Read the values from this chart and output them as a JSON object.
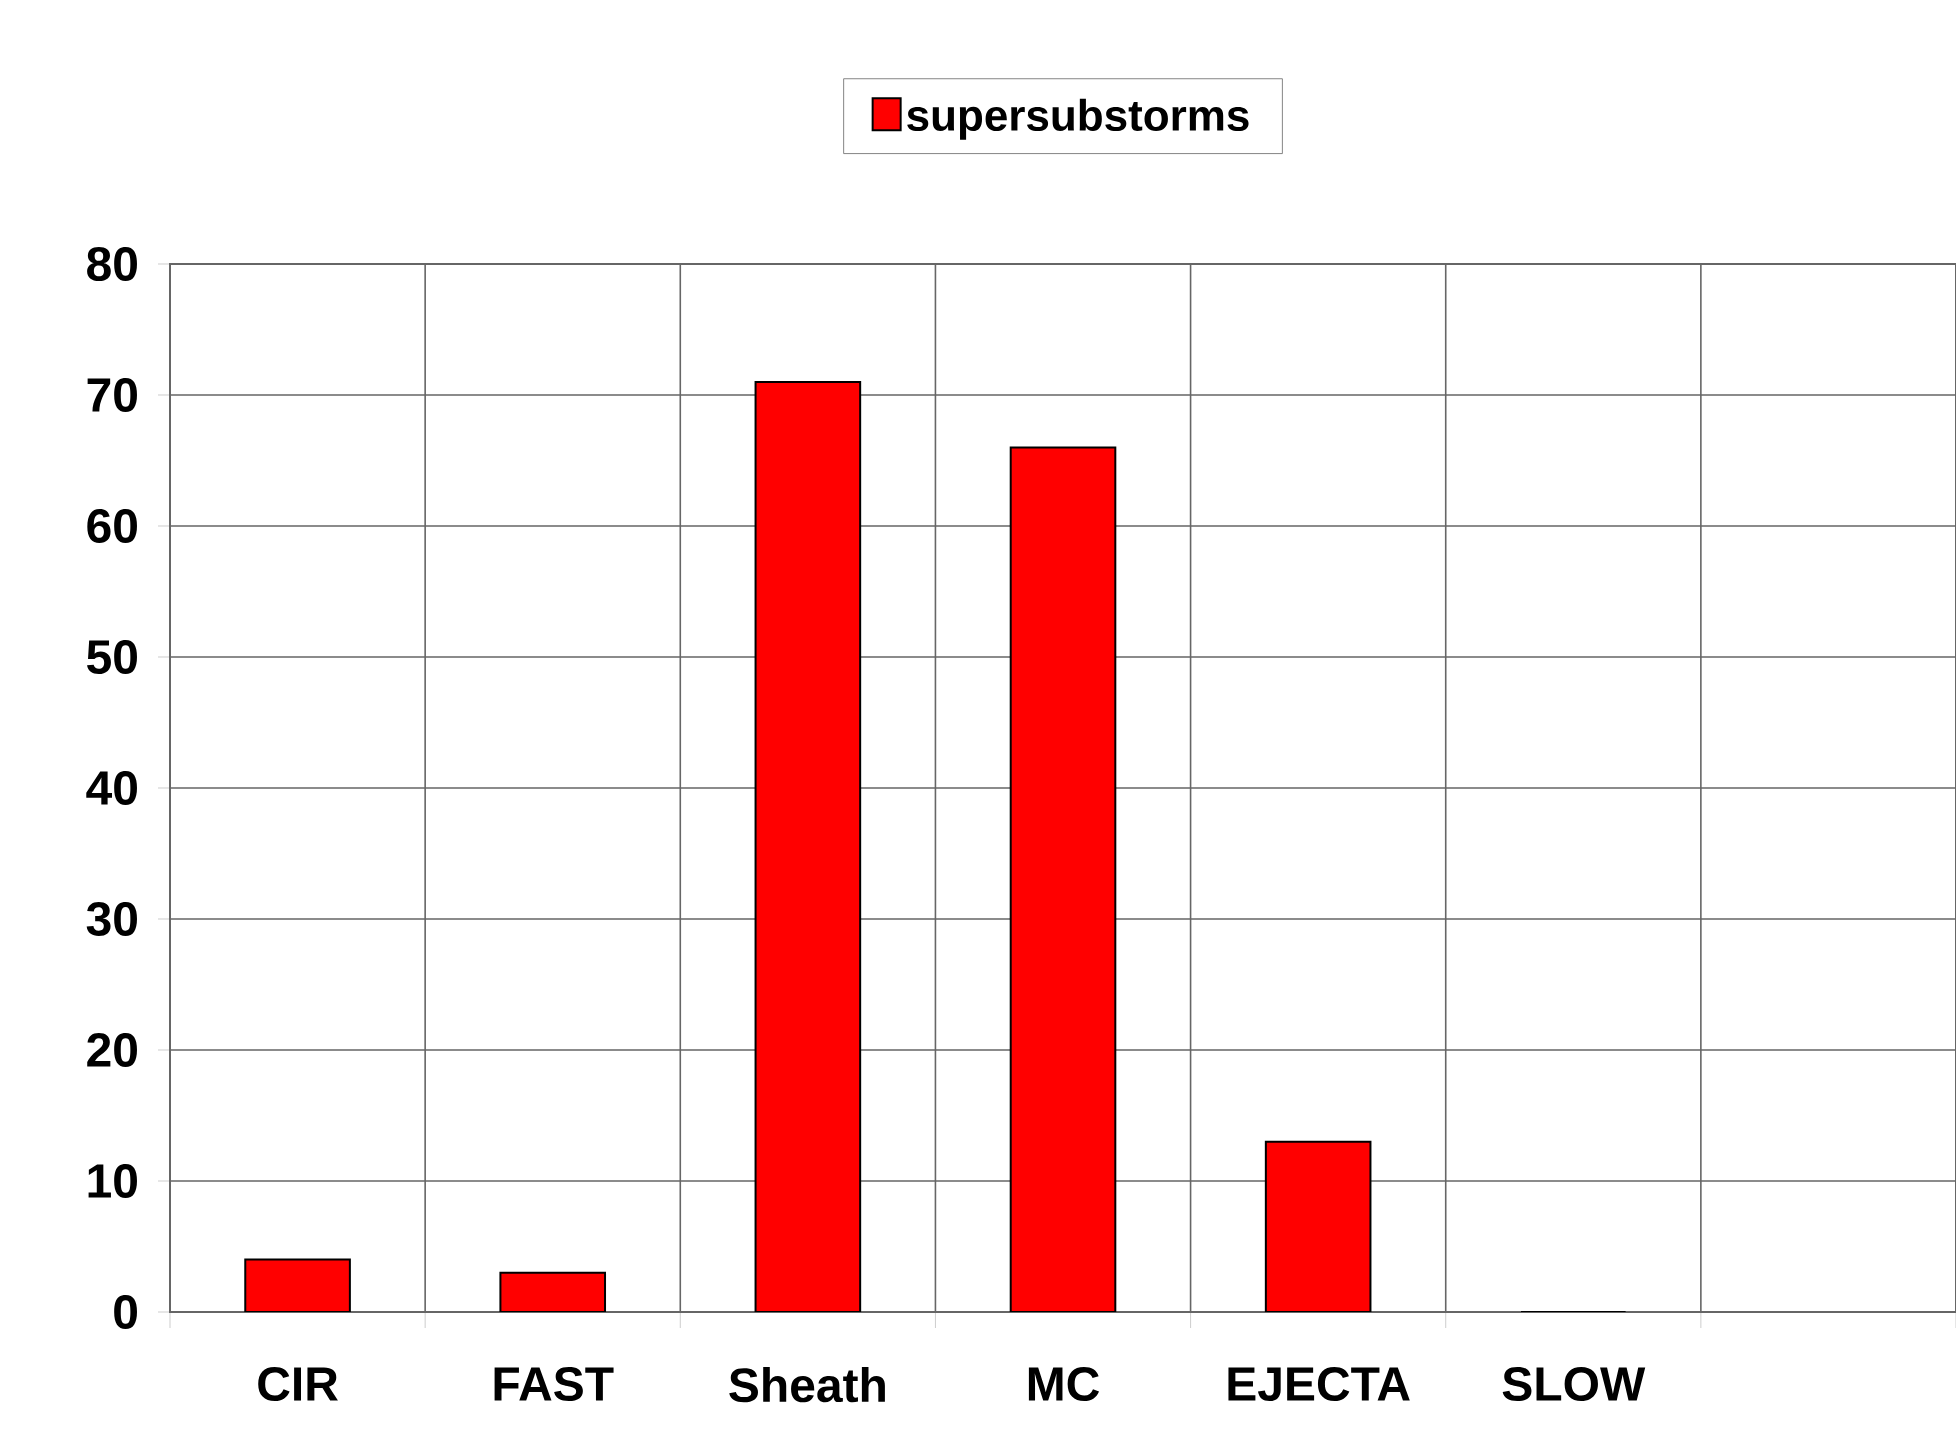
{
  "chart_data": {
    "type": "bar",
    "categories": [
      "CIR",
      "FAST",
      "Sheath",
      "MC",
      "EJECTA",
      "SLOW",
      null
    ],
    "series": [
      {
        "name": "supersubstorms",
        "color": "#ff0000",
        "values": [
          4,
          3,
          71,
          66,
          13,
          0,
          null
        ]
      }
    ],
    "ylim": [
      0,
      80
    ],
    "yticks": [
      0,
      10,
      20,
      30,
      40,
      50,
      60,
      70,
      80
    ],
    "grid": true,
    "legend": "top"
  }
}
